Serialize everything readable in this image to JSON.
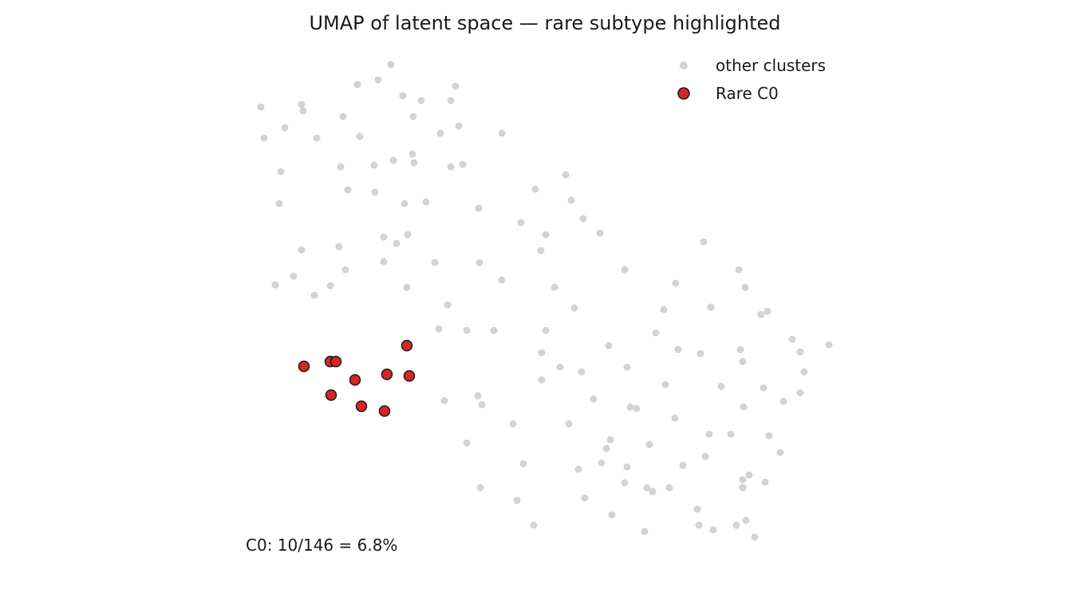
{
  "chart_data": {
    "type": "scatter",
    "title": "UMAP of latent space — rare subtype highlighted",
    "xlabel": "",
    "ylabel": "",
    "axes_visible": false,
    "grid": false,
    "legend_placement": "top-right",
    "annotation": "C0: 10/146 = 6.8%",
    "series": [
      {
        "name": "other clusters",
        "color": "#d3d3d3",
        "edge": "none",
        "points": [
          [
            490,
            81
          ],
          [
            448,
            106
          ],
          [
            474,
            100
          ],
          [
            571,
            108
          ],
          [
            327,
            134
          ],
          [
            378,
            131
          ],
          [
            380,
            139
          ],
          [
            505,
            120
          ],
          [
            528,
            126
          ],
          [
            565,
            126
          ],
          [
            430,
            146
          ],
          [
            518,
            146
          ],
          [
            357,
            160
          ],
          [
            575,
            158
          ],
          [
            331,
            173
          ],
          [
            397,
            173
          ],
          [
            451,
            171
          ],
          [
            552,
            167
          ],
          [
            629,
            167
          ],
          [
            517,
            193
          ],
          [
            493,
            201
          ],
          [
            519,
            204
          ],
          [
            469,
            207
          ],
          [
            427,
            209
          ],
          [
            565,
            209
          ],
          [
            580,
            206
          ],
          [
            352,
            215
          ],
          [
            709,
            219
          ],
          [
            436,
            238
          ],
          [
            470,
            241
          ],
          [
            671,
            237
          ],
          [
            350,
            255
          ],
          [
            507,
            255
          ],
          [
            534,
            253
          ],
          [
            716,
            251
          ],
          [
            600,
            261
          ],
          [
            731,
            274
          ],
          [
            653,
            279
          ],
          [
            684,
            294
          ],
          [
            752,
            292
          ],
          [
            481,
            297
          ],
          [
            511,
            294
          ],
          [
            497,
            305
          ],
          [
            425,
            309
          ],
          [
            378,
            313
          ],
          [
            678,
            314
          ],
          [
            882,
            303
          ],
          [
            481,
            328
          ],
          [
            545,
            329
          ],
          [
            601,
            329
          ],
          [
            433,
            338
          ],
          [
            368,
            346
          ],
          [
            783,
            338
          ],
          [
            926,
            338
          ],
          [
            345,
            357
          ],
          [
            414,
            358
          ],
          [
            510,
            360
          ],
          [
            629,
            351
          ],
          [
            695,
            360
          ],
          [
            847,
            355
          ],
          [
            934,
            360
          ],
          [
            394,
            370
          ],
          [
            561,
            382
          ],
          [
            720,
            386
          ],
          [
            832,
            388
          ],
          [
            891,
            385
          ],
          [
            954,
            394
          ],
          [
            962,
            390
          ],
          [
            550,
            412
          ],
          [
            585,
            414
          ],
          [
            619,
            414
          ],
          [
            684,
            414
          ],
          [
            822,
            417
          ],
          [
            1039,
            432
          ],
          [
            993,
            425
          ],
          [
            763,
            433
          ],
          [
            850,
            438
          ],
          [
            878,
            443
          ],
          [
            928,
            438
          ],
          [
            1003,
            441
          ],
          [
            679,
            442
          ],
          [
            931,
            453
          ],
          [
            702,
            460
          ],
          [
            786,
            460
          ],
          [
            729,
            466
          ],
          [
            1008,
            466
          ],
          [
            679,
            476
          ],
          [
            834,
            482
          ],
          [
            904,
            484
          ],
          [
            957,
            486
          ],
          [
            557,
            502
          ],
          [
            599,
            496
          ],
          [
            604,
            507
          ],
          [
            744,
            500
          ],
          [
            790,
            510
          ],
          [
            798,
            512
          ],
          [
            932,
            510
          ],
          [
            1003,
            492
          ],
          [
            982,
            503
          ],
          [
            846,
            524
          ],
          [
            643,
            531
          ],
          [
            713,
            531
          ],
          [
            585,
            555
          ],
          [
            765,
            551
          ],
          [
            760,
            562
          ],
          [
            814,
            557
          ],
          [
            889,
            544
          ],
          [
            916,
            544
          ],
          [
            964,
            546
          ],
          [
            978,
            567
          ],
          [
            656,
            581
          ],
          [
            725,
            588
          ],
          [
            754,
            580
          ],
          [
            786,
            585
          ],
          [
            884,
            572
          ],
          [
            856,
            583
          ],
          [
            939,
            595
          ],
          [
            931,
            601
          ],
          [
            602,
            611
          ],
          [
            783,
            605
          ],
          [
            811,
            611
          ],
          [
            818,
            616
          ],
          [
            839,
            611
          ],
          [
            931,
            611
          ],
          [
            959,
            604
          ],
          [
            648,
            627
          ],
          [
            733,
            624
          ],
          [
            874,
            638
          ],
          [
            767,
            645
          ],
          [
            669,
            658
          ],
          [
            808,
            666
          ],
          [
            876,
            658
          ],
          [
            894,
            664
          ],
          [
            923,
            658
          ],
          [
            935,
            652
          ],
          [
            946,
            673
          ]
        ]
      },
      {
        "name": "Rare C0",
        "color": "#d62728",
        "edge": "#1a1a1a",
        "points": [
          [
            510,
            433
          ],
          [
            381,
            459
          ],
          [
            414,
            453
          ],
          [
            421,
            453
          ],
          [
            445,
            476
          ],
          [
            485,
            469
          ],
          [
            513,
            471
          ],
          [
            415,
            495
          ],
          [
            453,
            509
          ],
          [
            482,
            515
          ]
        ]
      }
    ]
  }
}
